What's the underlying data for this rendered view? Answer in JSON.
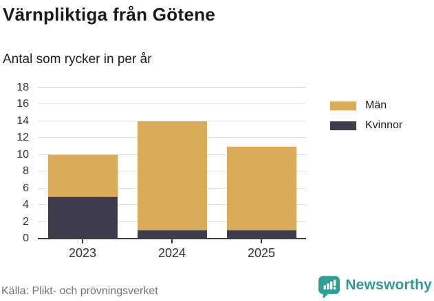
{
  "header": {
    "title": "Värnpliktiga från Götene",
    "subtitle": "Antal som rycker in per år"
  },
  "chart_data": {
    "type": "bar",
    "stacked": true,
    "title": "Värnpliktiga från Götene",
    "subtitle": "Antal som rycker in per år",
    "categories": [
      "2023",
      "2024",
      "2025"
    ],
    "series": [
      {
        "name": "Kvinnor",
        "color": "#3e3c4d",
        "values": [
          5,
          1,
          1
        ]
      },
      {
        "name": "Män",
        "color": "#d9ab58",
        "values": [
          5,
          13,
          10
        ]
      }
    ],
    "stack_totals": [
      10,
      14,
      11
    ],
    "xlabel": "",
    "ylabel": "",
    "ylim": [
      0,
      18
    ],
    "yticks": [
      0,
      2,
      4,
      6,
      8,
      10,
      12,
      14,
      16,
      18
    ],
    "grid": true,
    "legend_position": "right"
  },
  "legend": {
    "items": [
      {
        "label": "Män",
        "color": "#d9ab58"
      },
      {
        "label": "Kvinnor",
        "color": "#3e3c4d"
      }
    ]
  },
  "footer": {
    "source": "Källa: Plikt- och prövningsverket",
    "brand_name": "Newsworthy",
    "brand_color": "#2f9a93",
    "brand_icon": "newsworthy-chart-bubble-icon"
  },
  "colors": {
    "men": "#d9ab58",
    "women": "#3e3c4d",
    "gridline": "#e0e0e0",
    "axis": "#3c3a4a",
    "tick_label": "#333333",
    "source_text": "#71717c",
    "brand_teal": "#2f9a93"
  }
}
